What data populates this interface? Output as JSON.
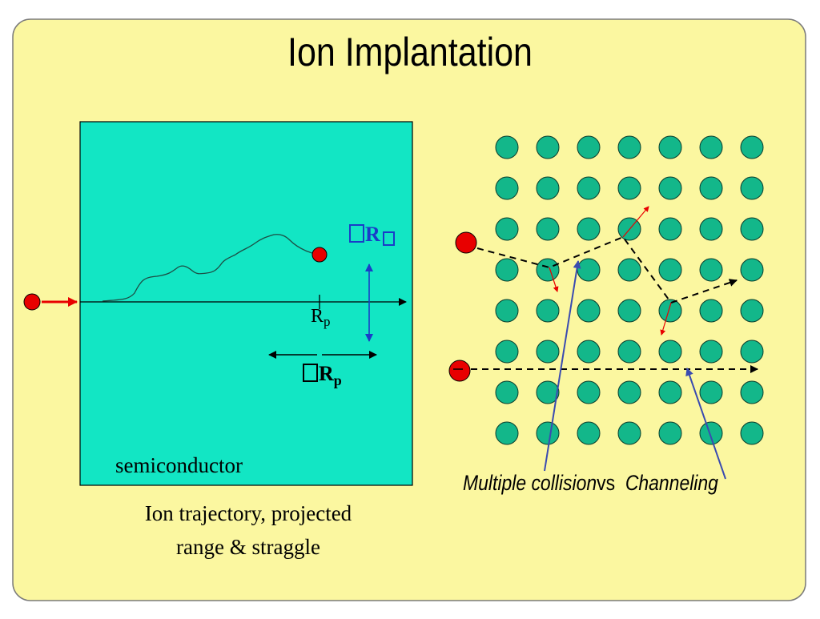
{
  "title": "Ion Implantation",
  "left_panel": {
    "box_label": "semiconductor",
    "caption_line1": "Ion trajectory, projected",
    "caption_line2": "range & straggle",
    "rp_base": "R",
    "rp_sub": "p",
    "delta_rp_base": "R",
    "delta_rp_sub": "p",
    "delta_rperp_base": "R"
  },
  "right_panel": {
    "label_multiple": "Multiple collision",
    "label_vs": "vs",
    "label_channeling": "Channeling"
  },
  "colors": {
    "background": "#fbf7a0",
    "semiconductor": "#12e6c4",
    "atom": "#13b78a",
    "ion": "#e80000",
    "pointer": "#3a4bb0",
    "straggle": "#1a3cc8"
  }
}
